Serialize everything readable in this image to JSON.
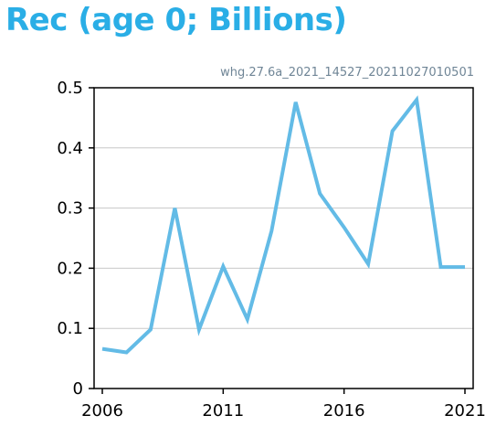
{
  "chart_data": {
    "type": "line",
    "title": "Rec (age 0; Billions)",
    "subtitle": "whg.27.6a_2021_14527_20211027010501",
    "xlabel": "",
    "ylabel": "",
    "x": [
      2006,
      2007,
      2008,
      2009,
      2010,
      2011,
      2012,
      2013,
      2014,
      2015,
      2016,
      2017,
      2018,
      2019,
      2020,
      2021
    ],
    "series": [
      {
        "values": [
          0.066,
          0.06,
          0.098,
          0.3,
          0.098,
          0.203,
          0.115,
          0.262,
          0.476,
          0.324,
          0.268,
          0.207,
          0.428,
          0.48,
          0.202,
          0.202
        ]
      }
    ],
    "xlim": [
      2006,
      2021
    ],
    "ylim": [
      0,
      0.5
    ],
    "xticks": [
      "2006",
      "2011",
      "2016",
      "2021"
    ],
    "yticks": [
      "0",
      "0.1",
      "0.2",
      "0.3",
      "0.4",
      "0.5"
    ],
    "grid": "horizontal",
    "line_color": "#63bbe6",
    "title_color": "#2aaee6"
  }
}
